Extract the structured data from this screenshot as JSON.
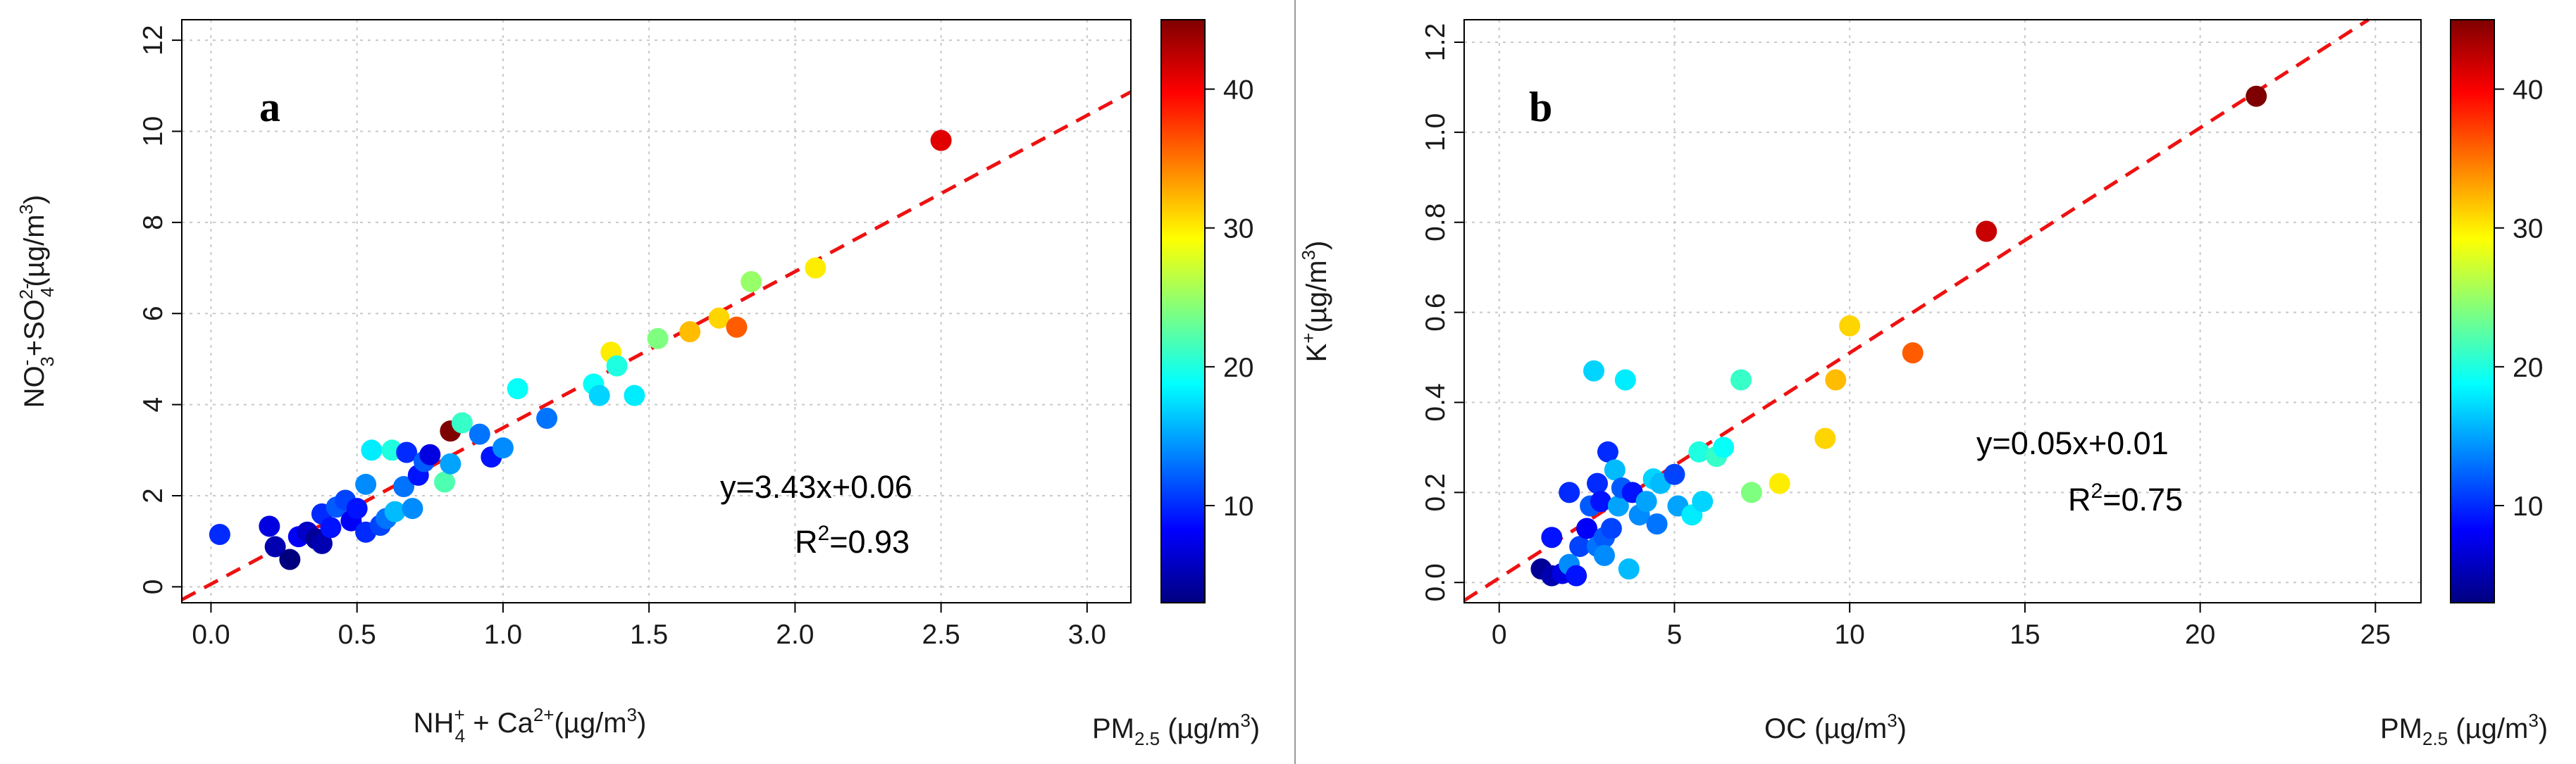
{
  "chart_data": [
    {
      "type": "scatter",
      "panel_label": "a",
      "xlabel": "NH4+ + Ca2+ (µg/m3)",
      "ylabel": "NO3- + SO42- (µg/m3)",
      "xlim": [
        -0.1,
        3.15
      ],
      "ylim": [
        -0.35,
        12.45
      ],
      "xticks": [
        0.0,
        0.5,
        1.0,
        1.5,
        2.0,
        2.5,
        3.0
      ],
      "yticks": [
        0,
        2,
        4,
        6,
        8,
        10,
        12
      ],
      "grid": true,
      "colorbar": {
        "label": "PM2.5 (µg/m3)",
        "range": [
          3,
          45
        ],
        "ticks": [
          10,
          20,
          30,
          40
        ]
      },
      "fit": {
        "slope": 3.43,
        "intercept": 0.06,
        "equation": "y=3.43x+0.06",
        "r2": "R2=0.93"
      },
      "points": [
        {
          "x": 0.03,
          "y": 1.15,
          "c": 10
        },
        {
          "x": 0.2,
          "y": 1.33,
          "c": 7
        },
        {
          "x": 0.22,
          "y": 0.88,
          "c": 5
        },
        {
          "x": 0.27,
          "y": 0.6,
          "c": 3
        },
        {
          "x": 0.3,
          "y": 1.1,
          "c": 8
        },
        {
          "x": 0.33,
          "y": 1.2,
          "c": 6
        },
        {
          "x": 0.36,
          "y": 1.05,
          "c": 4
        },
        {
          "x": 0.38,
          "y": 1.6,
          "c": 10
        },
        {
          "x": 0.38,
          "y": 0.95,
          "c": 5
        },
        {
          "x": 0.41,
          "y": 1.3,
          "c": 9
        },
        {
          "x": 0.43,
          "y": 1.75,
          "c": 12
        },
        {
          "x": 0.46,
          "y": 1.9,
          "c": 11
        },
        {
          "x": 0.48,
          "y": 1.45,
          "c": 8
        },
        {
          "x": 0.5,
          "y": 1.72,
          "c": 9
        },
        {
          "x": 0.53,
          "y": 1.2,
          "c": 10
        },
        {
          "x": 0.53,
          "y": 2.25,
          "c": 14
        },
        {
          "x": 0.55,
          "y": 3.0,
          "c": 18
        },
        {
          "x": 0.58,
          "y": 1.35,
          "c": 11
        },
        {
          "x": 0.6,
          "y": 1.5,
          "c": 13
        },
        {
          "x": 0.62,
          "y": 3.0,
          "c": 20
        },
        {
          "x": 0.63,
          "y": 1.65,
          "c": 16
        },
        {
          "x": 0.66,
          "y": 2.2,
          "c": 13
        },
        {
          "x": 0.67,
          "y": 2.95,
          "c": 10
        },
        {
          "x": 0.69,
          "y": 1.72,
          "c": 14
        },
        {
          "x": 0.71,
          "y": 2.45,
          "c": 9
        },
        {
          "x": 0.73,
          "y": 2.75,
          "c": 12
        },
        {
          "x": 0.75,
          "y": 2.9,
          "c": 7
        },
        {
          "x": 0.8,
          "y": 2.3,
          "c": 22
        },
        {
          "x": 0.82,
          "y": 2.7,
          "c": 15
        },
        {
          "x": 0.82,
          "y": 3.42,
          "c": 45
        },
        {
          "x": 0.86,
          "y": 3.6,
          "c": 21
        },
        {
          "x": 0.92,
          "y": 3.35,
          "c": 13
        },
        {
          "x": 0.96,
          "y": 2.85,
          "c": 9
        },
        {
          "x": 1.0,
          "y": 3.05,
          "c": 14
        },
        {
          "x": 1.05,
          "y": 4.35,
          "c": 19
        },
        {
          "x": 1.15,
          "y": 3.7,
          "c": 13
        },
        {
          "x": 1.31,
          "y": 4.45,
          "c": 19
        },
        {
          "x": 1.33,
          "y": 4.2,
          "c": 17
        },
        {
          "x": 1.37,
          "y": 5.15,
          "c": 30
        },
        {
          "x": 1.39,
          "y": 4.85,
          "c": 20
        },
        {
          "x": 1.45,
          "y": 4.2,
          "c": 18
        },
        {
          "x": 1.53,
          "y": 5.45,
          "c": 24
        },
        {
          "x": 1.64,
          "y": 5.6,
          "c": 32
        },
        {
          "x": 1.74,
          "y": 5.9,
          "c": 31
        },
        {
          "x": 1.8,
          "y": 5.7,
          "c": 36
        },
        {
          "x": 1.85,
          "y": 6.7,
          "c": 25
        },
        {
          "x": 2.07,
          "y": 7.0,
          "c": 30
        },
        {
          "x": 2.5,
          "y": 9.8,
          "c": 41
        }
      ]
    },
    {
      "type": "scatter",
      "panel_label": "b",
      "xlabel": "OC (µg/m3)",
      "ylabel": "K+ (µg/m3)",
      "xlim": [
        -1.0,
        26.3
      ],
      "ylim": [
        -0.045,
        1.25
      ],
      "xticks": [
        0,
        5,
        10,
        15,
        20,
        25
      ],
      "yticks": [
        0.0,
        0.2,
        0.4,
        0.6,
        0.8,
        1.0,
        1.2
      ],
      "grid": true,
      "colorbar": {
        "label": "PM2.5 (µg/m3)",
        "range": [
          3,
          45
        ],
        "ticks": [
          10,
          20,
          30,
          40
        ]
      },
      "fit": {
        "slope": 0.05,
        "intercept": 0.01,
        "equation": "y=0.05x+0.01",
        "r2": "R2=0.75"
      },
      "points": [
        {
          "x": 1.2,
          "y": 0.03,
          "c": 4
        },
        {
          "x": 1.5,
          "y": 0.1,
          "c": 9
        },
        {
          "x": 1.5,
          "y": 0.015,
          "c": 5
        },
        {
          "x": 1.8,
          "y": 0.02,
          "c": 7
        },
        {
          "x": 2.0,
          "y": 0.04,
          "c": 14
        },
        {
          "x": 2.0,
          "y": 0.2,
          "c": 10
        },
        {
          "x": 2.2,
          "y": 0.015,
          "c": 9
        },
        {
          "x": 2.3,
          "y": 0.08,
          "c": 11
        },
        {
          "x": 2.5,
          "y": 0.12,
          "c": 8
        },
        {
          "x": 2.6,
          "y": 0.17,
          "c": 12
        },
        {
          "x": 2.7,
          "y": 0.47,
          "c": 17
        },
        {
          "x": 2.8,
          "y": 0.22,
          "c": 10
        },
        {
          "x": 2.8,
          "y": 0.08,
          "c": 13
        },
        {
          "x": 2.9,
          "y": 0.18,
          "c": 9
        },
        {
          "x": 3.0,
          "y": 0.1,
          "c": 12
        },
        {
          "x": 3.0,
          "y": 0.06,
          "c": 14
        },
        {
          "x": 3.1,
          "y": 0.29,
          "c": 10
        },
        {
          "x": 3.2,
          "y": 0.12,
          "c": 11
        },
        {
          "x": 3.3,
          "y": 0.25,
          "c": 16
        },
        {
          "x": 3.4,
          "y": 0.17,
          "c": 15
        },
        {
          "x": 3.5,
          "y": 0.21,
          "c": 12
        },
        {
          "x": 3.6,
          "y": 0.45,
          "c": 18
        },
        {
          "x": 3.7,
          "y": 0.03,
          "c": 16
        },
        {
          "x": 3.8,
          "y": 0.2,
          "c": 9
        },
        {
          "x": 4.0,
          "y": 0.15,
          "c": 14
        },
        {
          "x": 4.2,
          "y": 0.18,
          "c": 15
        },
        {
          "x": 4.4,
          "y": 0.23,
          "c": 17
        },
        {
          "x": 4.5,
          "y": 0.13,
          "c": 13
        },
        {
          "x": 4.6,
          "y": 0.22,
          "c": 16
        },
        {
          "x": 5.0,
          "y": 0.24,
          "c": 11
        },
        {
          "x": 5.1,
          "y": 0.17,
          "c": 15
        },
        {
          "x": 5.5,
          "y": 0.15,
          "c": 18
        },
        {
          "x": 5.7,
          "y": 0.29,
          "c": 20
        },
        {
          "x": 5.8,
          "y": 0.18,
          "c": 17
        },
        {
          "x": 6.2,
          "y": 0.28,
          "c": 21
        },
        {
          "x": 6.4,
          "y": 0.3,
          "c": 19
        },
        {
          "x": 6.9,
          "y": 0.45,
          "c": 21
        },
        {
          "x": 7.2,
          "y": 0.2,
          "c": 24
        },
        {
          "x": 8.0,
          "y": 0.22,
          "c": 30
        },
        {
          "x": 9.3,
          "y": 0.32,
          "c": 31
        },
        {
          "x": 9.6,
          "y": 0.45,
          "c": 32
        },
        {
          "x": 10.0,
          "y": 0.57,
          "c": 31
        },
        {
          "x": 11.8,
          "y": 0.51,
          "c": 36
        },
        {
          "x": 13.9,
          "y": 0.78,
          "c": 42
        },
        {
          "x": 21.6,
          "y": 1.08,
          "c": 45
        }
      ]
    }
  ]
}
